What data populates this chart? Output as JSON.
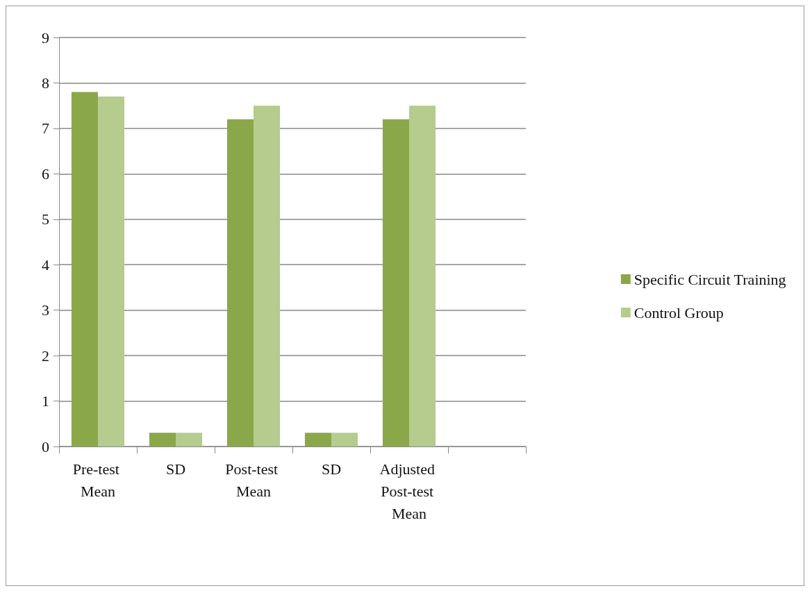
{
  "chart_data": {
    "type": "bar",
    "categories": [
      "Pre-test Mean",
      "SD",
      "Post-test Mean",
      "SD",
      "Adjusted Post-test Mean",
      null
    ],
    "series": [
      {
        "name": "Specific Circuit Training",
        "color": "#8aa84a",
        "values": [
          7.8,
          0.3,
          7.2,
          0.3,
          7.2,
          null
        ]
      },
      {
        "name": "Control Group",
        "color": "#b5cc8e",
        "values": [
          7.7,
          0.3,
          7.5,
          0.3,
          7.5,
          null
        ]
      }
    ],
    "ylim": [
      0,
      9
    ],
    "yticks": [
      0,
      1,
      2,
      3,
      4,
      5,
      6,
      7,
      8,
      9
    ],
    "grid": "y",
    "legend": "right"
  }
}
